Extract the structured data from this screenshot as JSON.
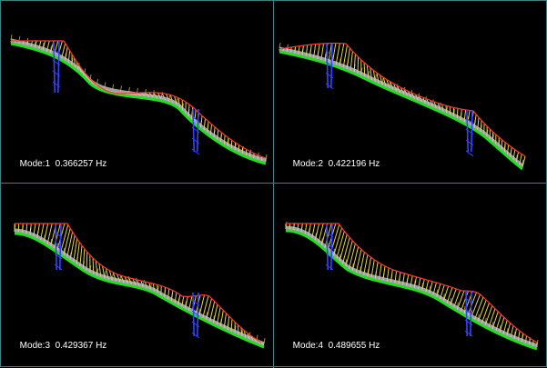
{
  "panes": [
    {
      "id": "mode-1",
      "mode_prefix": "Mode:1",
      "frequency": "0.366257 Hz",
      "colors": {
        "deck": "#22dd22",
        "cable": "#ff3333",
        "hanger": "#ffee44",
        "tower": "#3344ff",
        "core": "#c8c8c8"
      }
    },
    {
      "id": "mode-2",
      "mode_prefix": "Mode:2",
      "frequency": "0.422196 Hz",
      "colors": {
        "deck": "#22dd22",
        "cable": "#ff3333",
        "hanger": "#ffee44",
        "tower": "#3344ff",
        "core": "#c8c8c8"
      }
    },
    {
      "id": "mode-3",
      "mode_prefix": "Mode:3",
      "frequency": "0.429367 Hz",
      "colors": {
        "deck": "#22dd22",
        "cable": "#ff3333",
        "hanger": "#ffee44",
        "tower": "#3344ff",
        "core": "#c8c8c8"
      }
    },
    {
      "id": "mode-4",
      "mode_prefix": "Mode:4",
      "frequency": "0.489655 Hz",
      "colors": {
        "deck": "#22dd22",
        "cable": "#ff3333",
        "hanger": "#ffee44",
        "tower": "#3344ff",
        "core": "#c8c8c8"
      }
    }
  ],
  "theme": {
    "background": "#000000",
    "border": "#3f7f86",
    "label_color": "#ffffff"
  }
}
